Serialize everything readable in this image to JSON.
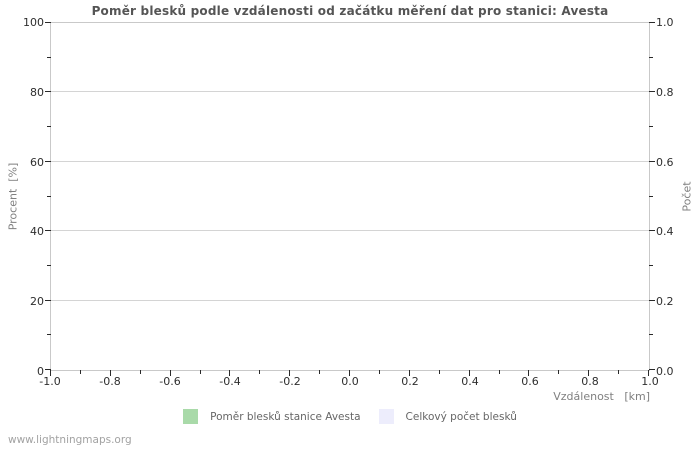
{
  "watermark": "www.lightningmaps.org",
  "chart_data": {
    "type": "bar",
    "title": "Poměr blesků podle vzdálenosti od začátku měření dat pro stanici: Avesta",
    "xlabel": "Vzdálenost   [km]",
    "ylabel_left": "Procent  [%]",
    "ylabel_right": "Počet",
    "x_axis": {
      "range": [
        -1.0,
        1.0
      ],
      "tick_labels": [
        "-1.0",
        "-0.8",
        "-0.6",
        "-0.4",
        "-0.2",
        "0.0",
        "0.2",
        "0.4",
        "0.6",
        "0.8",
        "1.0"
      ],
      "minor_ticks_between": 1
    },
    "y_axis_left": {
      "range": [
        0,
        100
      ],
      "tick_labels": [
        "0",
        "20",
        "40",
        "60",
        "80",
        "100"
      ],
      "minor_ticks_between": 1
    },
    "y_axis_right": {
      "range": [
        0.0,
        1.0
      ],
      "tick_labels": [
        "0.0",
        "0.2",
        "0.4",
        "0.6",
        "0.8",
        "1.0"
      ],
      "minor_ticks_between": 1
    },
    "grid": "horizontal-only",
    "legend_position": "bottom-center",
    "series": [
      {
        "name": "Poměr blesků stanice Avesta",
        "color": "#a9daa9",
        "values": []
      },
      {
        "name": "Celkový počet blesků",
        "color": "#ededfc",
        "values": []
      }
    ],
    "colors": {
      "frame": "#c9c9c9",
      "grid": "#d4d4d4",
      "tick": "#2a2a2a",
      "title": "#555555",
      "axis_name": "#808080",
      "legend_text": "#666666",
      "watermark": "#a2a2a2",
      "background": "#ffffff"
    }
  }
}
